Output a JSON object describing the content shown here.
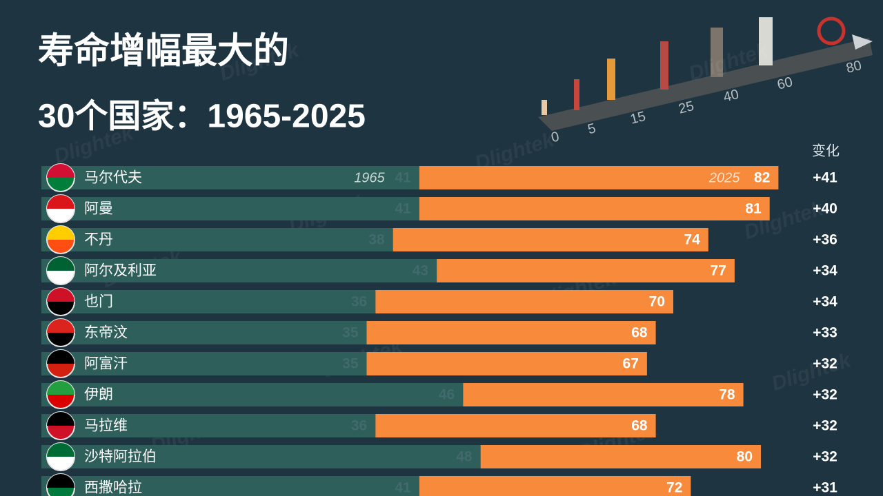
{
  "chart_data": {
    "type": "overlap-bar",
    "title": "寿命增幅最大的",
    "subtitle": "30个国家：1965-2025",
    "watermark": "Dlightek",
    "illustration_labels": [
      "0",
      "5",
      "15",
      "25",
      "40",
      "60",
      "80"
    ],
    "categories": [
      "马尔代夫",
      "阿曼",
      "不丹",
      "阿尔及利亚",
      "也门",
      "东帝汶",
      "阿富汗",
      "伊朗",
      "马拉维",
      "沙特阿拉伯",
      "西撒哈拉"
    ],
    "series": [
      {
        "name": "1965",
        "color": "#2e5f5b",
        "values": [
          41,
          41,
          38,
          43,
          36,
          35,
          35,
          46,
          36,
          48,
          41
        ]
      },
      {
        "name": "2025",
        "color": "#f78a3b",
        "values": [
          82,
          81,
          74,
          77,
          70,
          68,
          67,
          78,
          68,
          80,
          72
        ]
      },
      {
        "name": "变化",
        "values": [
          41,
          40,
          36,
          34,
          34,
          33,
          32,
          32,
          32,
          32,
          31
        ],
        "value_labels": [
          "+41",
          "+40",
          "+36",
          "+34",
          "+34",
          "+33",
          "+32",
          "+32",
          "+32",
          "+32",
          "+31"
        ]
      }
    ]
  }
}
